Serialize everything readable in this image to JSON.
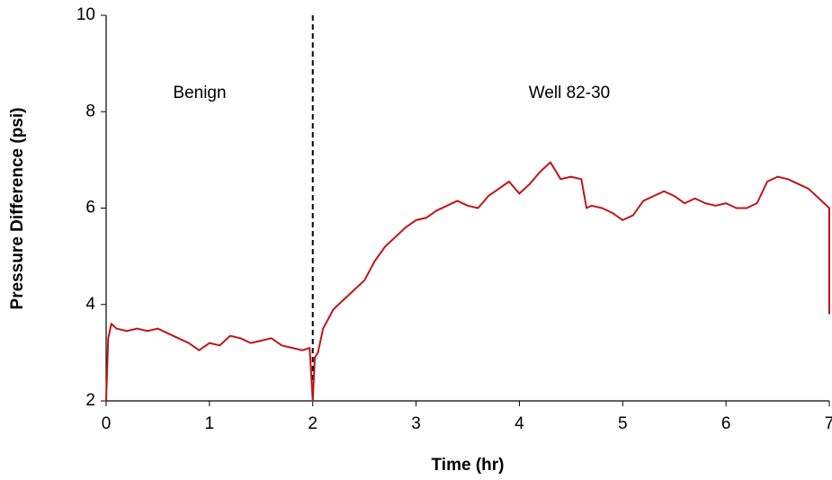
{
  "chart_data": {
    "type": "line",
    "x_label": "Time (hr)",
    "y_label": "Pressure Difference (psi)",
    "annotations": [
      "Benign",
      "Well 82-30"
    ],
    "vlines": [
      2
    ],
    "xlim": [
      0,
      7
    ],
    "xticks": [
      0,
      1,
      2,
      3,
      4,
      5,
      6,
      7
    ],
    "ylim": [
      2,
      10
    ],
    "yticks": [
      2,
      4,
      6,
      8,
      10
    ],
    "grid": false,
    "series": [
      {
        "color": "#c0141a",
        "x": [
          0,
          0.02,
          0.05,
          0.1,
          0.2,
          0.3,
          0.4,
          0.5,
          0.6,
          0.7,
          0.8,
          0.9,
          1.0,
          1.1,
          1.2,
          1.3,
          1.4,
          1.5,
          1.6,
          1.7,
          1.8,
          1.9,
          1.97,
          2.0,
          2.02,
          2.05,
          2.1,
          2.2,
          2.3,
          2.4,
          2.5,
          2.6,
          2.7,
          2.8,
          2.9,
          3.0,
          3.1,
          3.2,
          3.3,
          3.4,
          3.5,
          3.6,
          3.7,
          3.8,
          3.9,
          4.0,
          4.1,
          4.2,
          4.3,
          4.4,
          4.5,
          4.6,
          4.65,
          4.7,
          4.8,
          4.9,
          5.0,
          5.1,
          5.2,
          5.3,
          5.4,
          5.5,
          5.6,
          5.7,
          5.8,
          5.9,
          6.0,
          6.1,
          6.2,
          6.3,
          6.4,
          6.5,
          6.6,
          6.7,
          6.8,
          6.9,
          7.0,
          7.0
        ],
        "values": [
          2.0,
          3.3,
          3.6,
          3.5,
          3.45,
          3.5,
          3.45,
          3.5,
          3.4,
          3.3,
          3.2,
          3.05,
          3.2,
          3.15,
          3.35,
          3.3,
          3.2,
          3.25,
          3.3,
          3.15,
          3.1,
          3.05,
          3.1,
          2.0,
          2.9,
          3.0,
          3.5,
          3.9,
          4.1,
          4.3,
          4.5,
          4.9,
          5.2,
          5.4,
          5.6,
          5.75,
          5.8,
          5.95,
          6.05,
          6.15,
          6.05,
          6.0,
          6.25,
          6.4,
          6.55,
          6.3,
          6.5,
          6.75,
          6.95,
          6.6,
          6.65,
          6.6,
          6.0,
          6.05,
          6.0,
          5.9,
          5.75,
          5.85,
          6.15,
          6.25,
          6.35,
          6.25,
          6.1,
          6.2,
          6.1,
          6.05,
          6.1,
          6.0,
          6.0,
          6.1,
          6.55,
          6.65,
          6.6,
          6.5,
          6.4,
          6.2,
          6.0,
          3.8
        ]
      }
    ]
  }
}
